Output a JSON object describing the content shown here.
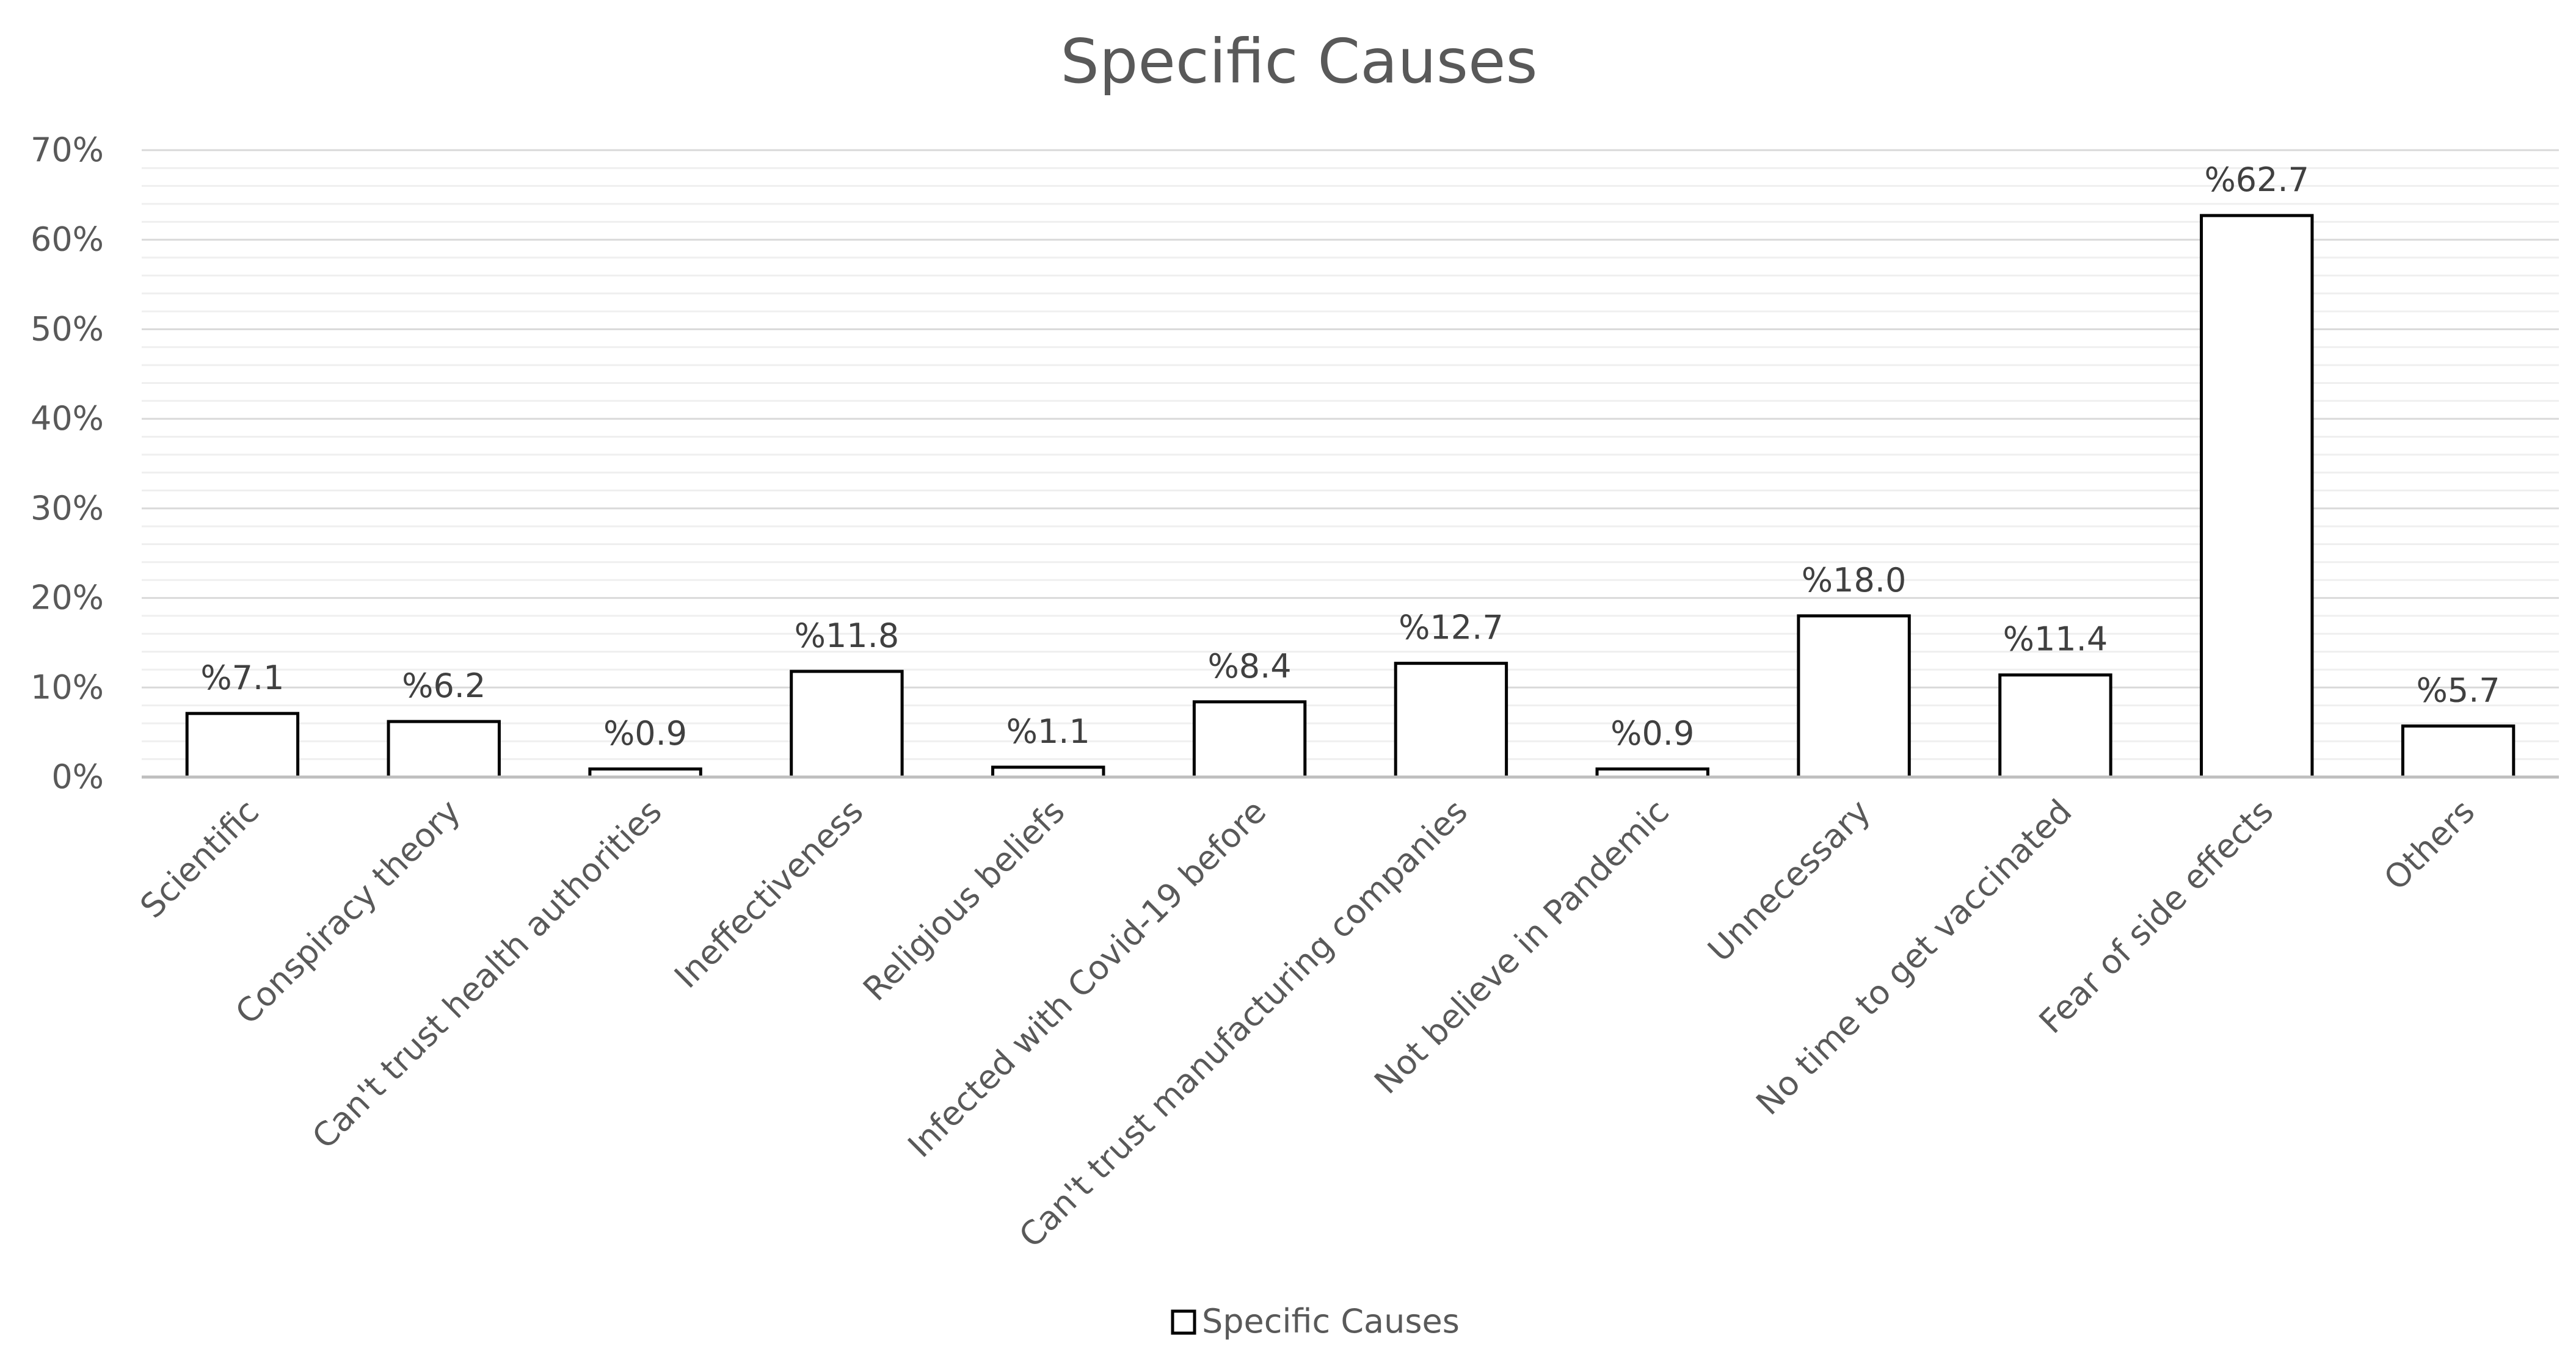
{
  "chart_data": {
    "type": "bar",
    "title": "Specific Causes",
    "categories": [
      "Scientific",
      "Conspiracy theory",
      "Can't trust health authorities",
      "Ineffectiveness",
      "Religious beliefs",
      "Infected with Covid-19 before",
      "Can't trust manufacturing companies",
      "Not believe in Pandemic",
      "Unnecessary",
      "No time to get vaccinated",
      "Fear of side effects",
      "Others"
    ],
    "series": [
      {
        "name": "Specific Causes",
        "values": [
          7.1,
          6.2,
          0.9,
          11.8,
          1.1,
          8.4,
          12.7,
          0.9,
          18.0,
          11.4,
          62.7,
          5.7
        ],
        "data_labels": [
          "%7.1",
          "%6.2",
          "%0.9",
          "%11.8",
          "%1.1",
          "%8.4",
          "%12.7",
          "%0.9",
          "%18.0",
          "%11.4",
          "%62.7",
          "%5.7"
        ]
      }
    ],
    "ylim": [
      0,
      70
    ],
    "y_ticks": [
      0,
      10,
      20,
      30,
      40,
      50,
      60,
      70
    ],
    "y_tick_labels": [
      "0%",
      "10%",
      "20%",
      "30%",
      "40%",
      "50%",
      "60%",
      "70%"
    ],
    "xlabel": "",
    "ylabel": "",
    "grid": true,
    "legend_position": "bottom"
  }
}
